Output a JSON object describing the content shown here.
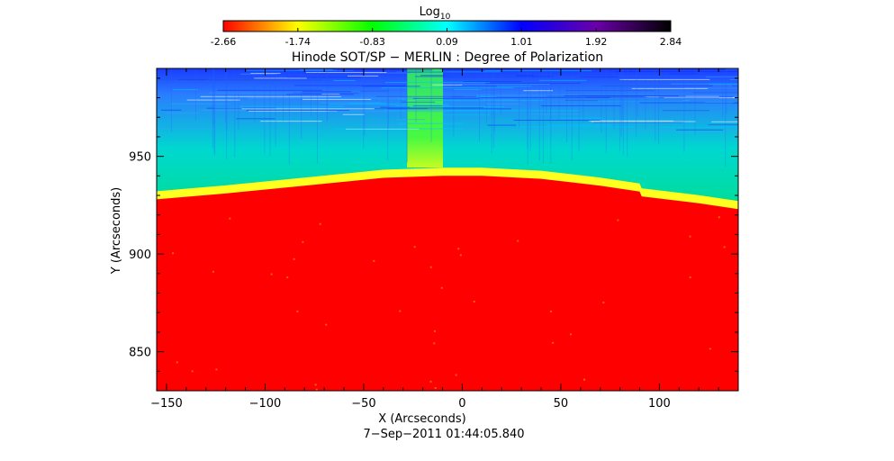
{
  "colorbar": {
    "title": "Log",
    "title_subscript": "10",
    "tick_labels": [
      "-2.66",
      "-1.74",
      "-0.83",
      "0.09",
      "1.01",
      "1.92",
      "2.84"
    ],
    "range": [
      -2.66,
      2.84
    ],
    "colormap": [
      "#ff0000",
      "#ffff00",
      "#00ff00",
      "#00ffff",
      "#0000ff",
      "#6a00a8",
      "#000000"
    ]
  },
  "chart_data": {
    "type": "heatmap",
    "title": "Hinode SOT/SP − MERLIN : Degree of Polarization",
    "xlabel": "X (Arcseconds)",
    "ylabel": "Y (Arcseconds)",
    "xlim": [
      -155,
      140
    ],
    "ylim": [
      830,
      995
    ],
    "x_ticks": [
      -150,
      -100,
      -50,
      0,
      50,
      100
    ],
    "x_tick_labels": [
      "−150",
      "−100",
      "−50",
      "0",
      "50",
      "100"
    ],
    "y_ticks": [
      850,
      900,
      950
    ],
    "y_tick_labels": [
      "850",
      "900",
      "950"
    ],
    "limb_profile": {
      "x": [
        -155,
        -120,
        -80,
        -40,
        -10,
        10,
        40,
        70,
        90,
        91,
        120,
        140
      ],
      "y": [
        928,
        931,
        935,
        939,
        940,
        940,
        938.5,
        935,
        932,
        929.5,
        926,
        923
      ]
    },
    "disk_log_value": -2.66,
    "offlimb_log_value": 0.09,
    "timestamp": "7−Sep−2011 01:44:05.840"
  }
}
